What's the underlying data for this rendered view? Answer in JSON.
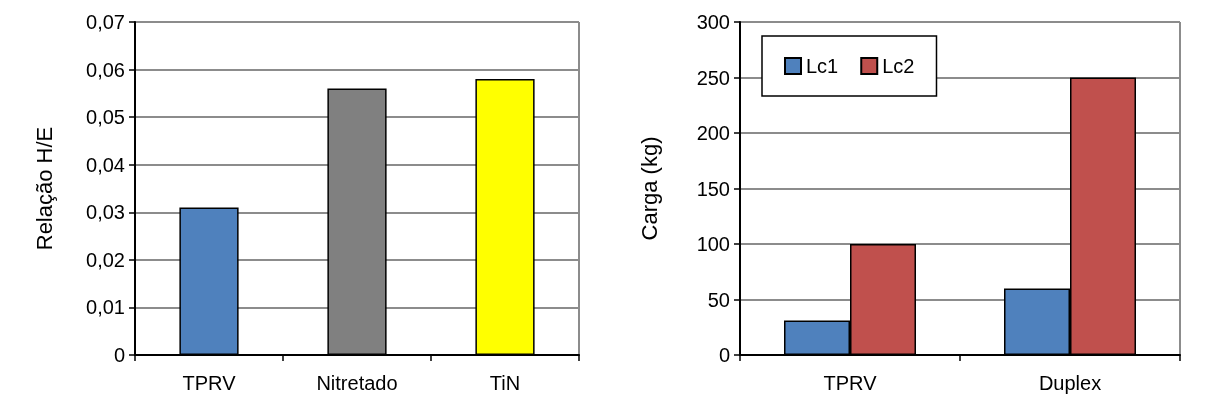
{
  "chart_data": [
    {
      "type": "bar",
      "ylabel": "Relação H/E",
      "categories": [
        "TPRV",
        "Nitretado",
        "TiN"
      ],
      "values": [
        0.031,
        0.056,
        0.058
      ],
      "colors": [
        "#4f81bd",
        "#808080",
        "#ffff00"
      ],
      "ylim": [
        0,
        0.07
      ],
      "yticks": [
        0,
        {
          "value": 0.01,
          "label": "0,01"
        },
        {
          "value": 0.02,
          "label": "0,02"
        },
        {
          "value": 0.03,
          "label": "0,03"
        },
        {
          "value": 0.04,
          "label": "0,04"
        },
        {
          "value": 0.05,
          "label": "0,05"
        },
        {
          "value": 0.06,
          "label": "0,06"
        },
        {
          "value": 0.07,
          "label": "0,07"
        }
      ],
      "grid": "y"
    },
    {
      "type": "bar",
      "ylabel": "Carga (kg)",
      "categories": [
        "TPRV",
        "Duplex"
      ],
      "series": [
        {
          "name": "Lc1",
          "color": "#4f81bd",
          "values": [
            31,
            60
          ]
        },
        {
          "name": "Lc2",
          "color": "#c0504d",
          "values": [
            100,
            250
          ]
        }
      ],
      "ylim": [
        0,
        300
      ],
      "yticks": [
        0,
        50,
        100,
        150,
        200,
        250,
        300
      ],
      "grid": "y",
      "legend": "top left"
    }
  ]
}
